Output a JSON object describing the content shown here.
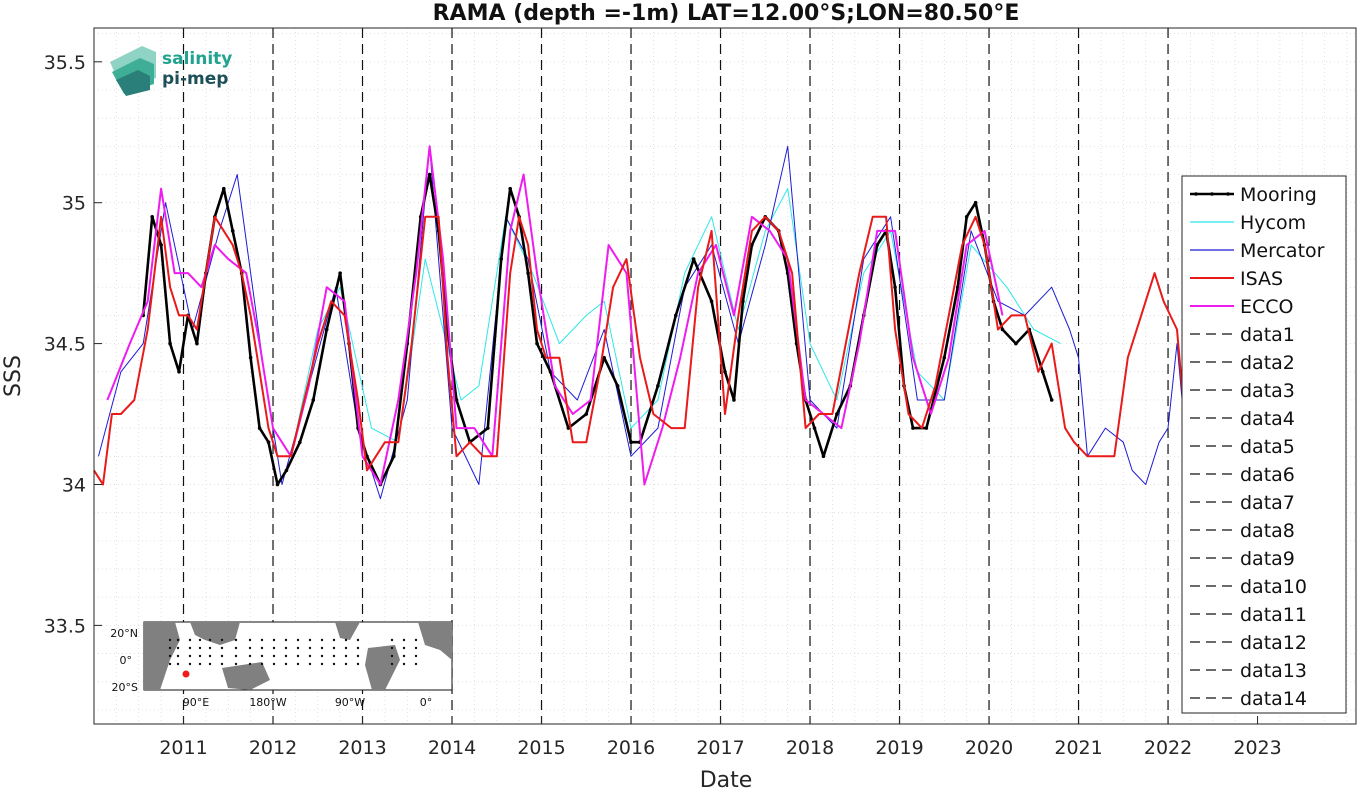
{
  "chart_data": {
    "type": "line",
    "title": "RAMA (depth =-1m) LAT=12.00°S;LON=80.50°E",
    "xlabel": "Date",
    "ylabel": "SSS",
    "xlim": [
      2010.0,
      2024.1
    ],
    "ylim": [
      33.15,
      35.62
    ],
    "x_ticks": [
      2011,
      2012,
      2013,
      2014,
      2015,
      2016,
      2017,
      2018,
      2019,
      2020,
      2021,
      2022,
      2023
    ],
    "x_tick_labels": [
      "2011",
      "2012",
      "2013",
      "2014",
      "2015",
      "2016",
      "2017",
      "2018",
      "2019",
      "2020",
      "2021",
      "2022",
      "2023"
    ],
    "y_ticks": [
      33.5,
      34,
      34.5,
      35,
      35.5
    ],
    "y_tick_labels": [
      "33.5",
      "34",
      "34.5",
      "35",
      "35.5"
    ],
    "grid": true,
    "legend_position": "right",
    "vlines_x": [
      2011,
      2012,
      2013,
      2014,
      2015,
      2016,
      2017,
      2018,
      2019,
      2020,
      2021,
      2022
    ],
    "series": [
      {
        "name": "Mooring",
        "color": "#000000",
        "style": "solid-dots",
        "x": [
          2010.55,
          2010.65,
          2010.75,
          2010.85,
          2010.95,
          2011.05,
          2011.15,
          2011.25,
          2011.35,
          2011.45,
          2011.55,
          2011.65,
          2011.75,
          2011.85,
          2011.95,
          2012.05,
          2012.15,
          2012.3,
          2012.45,
          2012.6,
          2012.75,
          2012.85,
          2012.95,
          2013.05,
          2013.2,
          2013.35,
          2013.5,
          2013.65,
          2013.75,
          2013.85,
          2013.95,
          2014.05,
          2014.2,
          2014.4,
          2014.55,
          2014.65,
          2014.75,
          2014.85,
          2014.95,
          2015.1,
          2015.3,
          2015.5,
          2015.7,
          2015.85,
          2016.0,
          2016.1,
          2016.3,
          2016.5,
          2016.7,
          2016.9,
          2017.05,
          2017.15,
          2017.25,
          2017.35,
          2017.5,
          2017.65,
          2017.75,
          2017.85,
          2017.95,
          2018.05,
          2018.15,
          2018.3,
          2018.45,
          2018.6,
          2018.75,
          2018.85,
          2018.95,
          2019.05,
          2019.15,
          2019.3,
          2019.5,
          2019.65,
          2019.75,
          2019.85,
          2019.95,
          2020.05,
          2020.15,
          2020.3,
          2020.45,
          2020.6,
          2020.7
        ],
        "values": [
          34.6,
          34.95,
          34.85,
          34.5,
          34.4,
          34.6,
          34.5,
          34.75,
          34.95,
          35.05,
          34.9,
          34.75,
          34.45,
          34.2,
          34.15,
          34.0,
          34.05,
          34.15,
          34.3,
          34.55,
          34.75,
          34.5,
          34.2,
          34.1,
          34.0,
          34.1,
          34.5,
          34.95,
          35.1,
          34.9,
          34.55,
          34.3,
          34.15,
          34.2,
          34.8,
          35.05,
          34.95,
          34.75,
          34.5,
          34.4,
          34.2,
          34.25,
          34.45,
          34.35,
          34.15,
          34.15,
          34.35,
          34.6,
          34.8,
          34.65,
          34.4,
          34.3,
          34.65,
          34.85,
          34.95,
          34.9,
          34.75,
          34.5,
          34.3,
          34.2,
          34.1,
          34.25,
          34.35,
          34.6,
          34.85,
          34.9,
          34.7,
          34.35,
          34.2,
          34.2,
          34.45,
          34.7,
          34.95,
          35.0,
          34.85,
          34.65,
          34.55,
          34.5,
          34.55,
          34.4,
          34.3
        ]
      },
      {
        "name": "Hycom",
        "color": "#2ee8e8",
        "style": "solid",
        "x": [
          2012.2,
          2012.5,
          2012.75,
          2013.1,
          2013.4,
          2013.7,
          2014.1,
          2014.3,
          2014.6,
          2014.9,
          2015.2,
          2015.5,
          2015.7,
          2016.0,
          2016.3,
          2016.6,
          2016.9,
          2017.2,
          2017.5,
          2017.75,
          2018.0,
          2018.3,
          2018.6,
          2018.9,
          2019.2,
          2019.5,
          2019.8,
          2020.2,
          2020.5,
          2020.8
        ],
        "values": [
          34.1,
          34.55,
          34.7,
          34.2,
          34.15,
          34.8,
          34.3,
          34.35,
          34.95,
          34.75,
          34.5,
          34.6,
          34.65,
          34.2,
          34.3,
          34.75,
          34.95,
          34.55,
          34.9,
          35.05,
          34.5,
          34.3,
          34.75,
          34.9,
          34.4,
          34.3,
          34.85,
          34.7,
          34.55,
          34.5
        ]
      },
      {
        "name": "Mercator",
        "color": "#1c1cd6",
        "style": "solid",
        "x": [
          2010.05,
          2010.3,
          2010.55,
          2010.8,
          2011.1,
          2011.4,
          2011.6,
          2011.9,
          2012.1,
          2012.4,
          2012.7,
          2012.95,
          2013.2,
          2013.5,
          2013.75,
          2014.0,
          2014.3,
          2014.6,
          2014.85,
          2015.1,
          2015.4,
          2015.7,
          2016.0,
          2016.3,
          2016.6,
          2016.9,
          2017.2,
          2017.5,
          2017.75,
          2018.0,
          2018.3,
          2018.6,
          2018.9,
          2019.2,
          2019.5,
          2019.8,
          2020.1,
          2020.4,
          2020.7,
          2020.9,
          2021.0,
          2021.1,
          2021.3,
          2021.5,
          2021.6,
          2021.75,
          2021.9,
          2022.0,
          2022.1,
          2022.2,
          2022.35,
          2022.5,
          2022.7,
          2022.85,
          2023.0,
          2023.15,
          2023.3,
          2023.45,
          2023.6,
          2023.75
        ],
        "values": [
          34.1,
          34.4,
          34.5,
          35.0,
          34.55,
          34.9,
          35.1,
          34.4,
          34.0,
          34.35,
          34.7,
          34.2,
          33.95,
          34.3,
          35.2,
          34.2,
          34.0,
          34.95,
          34.8,
          34.4,
          34.3,
          34.55,
          34.1,
          34.2,
          34.7,
          34.85,
          34.5,
          34.85,
          35.2,
          34.3,
          34.2,
          34.8,
          34.95,
          34.3,
          34.3,
          34.9,
          34.65,
          34.6,
          34.7,
          34.55,
          34.45,
          34.1,
          34.2,
          34.15,
          34.05,
          34.0,
          34.15,
          34.2,
          34.5,
          34.15,
          34.55,
          34.7,
          34.6,
          34.55,
          34.3,
          34.2,
          33.95,
          34.1,
          33.8,
          34.15
        ]
      },
      {
        "name": "ISAS",
        "color": "#e81a1a",
        "style": "solid",
        "x": [
          2010.0,
          2010.1,
          2010.2,
          2010.3,
          2010.45,
          2010.6,
          2010.75,
          2010.85,
          2010.95,
          2011.05,
          2011.15,
          2011.25,
          2011.35,
          2011.45,
          2011.55,
          2011.65,
          2011.75,
          2011.85,
          2011.95,
          2012.05,
          2012.2,
          2012.35,
          2012.5,
          2012.65,
          2012.8,
          2012.95,
          2013.05,
          2013.15,
          2013.25,
          2013.4,
          2013.55,
          2013.7,
          2013.85,
          2013.95,
          2014.05,
          2014.2,
          2014.35,
          2014.5,
          2014.65,
          2014.75,
          2014.85,
          2014.95,
          2015.05,
          2015.2,
          2015.35,
          2015.5,
          2015.65,
          2015.8,
          2015.95,
          2016.1,
          2016.25,
          2016.45,
          2016.6,
          2016.75,
          2016.9,
          2017.05,
          2017.2,
          2017.35,
          2017.5,
          2017.65,
          2017.8,
          2017.95,
          2018.1,
          2018.25,
          2018.4,
          2018.55,
          2018.7,
          2018.85,
          2018.95,
          2019.1,
          2019.25,
          2019.4,
          2019.55,
          2019.7,
          2019.85,
          2019.95,
          2020.1,
          2020.25,
          2020.4,
          2020.55,
          2020.7,
          2020.85,
          2020.95,
          2021.1,
          2021.25,
          2021.4,
          2021.55,
          2021.7,
          2021.85,
          2021.95,
          2022.1,
          2022.25,
          2022.4,
          2022.55,
          2022.7,
          2022.85,
          2023.0,
          2023.15,
          2023.3
        ],
        "values": [
          34.05,
          34.0,
          34.25,
          34.25,
          34.3,
          34.55,
          34.95,
          34.7,
          34.6,
          34.6,
          34.55,
          34.75,
          34.95,
          34.9,
          34.85,
          34.75,
          34.6,
          34.4,
          34.2,
          34.1,
          34.1,
          34.3,
          34.5,
          34.65,
          34.6,
          34.3,
          34.05,
          34.1,
          34.15,
          34.15,
          34.5,
          34.95,
          34.95,
          34.45,
          34.1,
          34.15,
          34.1,
          34.1,
          34.75,
          34.95,
          34.85,
          34.55,
          34.45,
          34.45,
          34.15,
          34.15,
          34.4,
          34.7,
          34.8,
          34.45,
          34.25,
          34.2,
          34.2,
          34.7,
          34.9,
          34.25,
          34.6,
          34.9,
          34.95,
          34.9,
          34.75,
          34.2,
          34.25,
          34.25,
          34.5,
          34.75,
          34.95,
          34.95,
          34.55,
          34.25,
          34.2,
          34.35,
          34.6,
          34.85,
          34.95,
          34.85,
          34.55,
          34.6,
          34.6,
          34.4,
          34.5,
          34.2,
          34.15,
          34.1,
          34.1,
          34.1,
          34.45,
          34.6,
          34.75,
          34.65,
          34.55,
          34.0,
          34.05,
          33.95,
          34.15,
          34.0,
          34.15,
          34.15,
          34.15
        ]
      },
      {
        "name": "ECCO",
        "color": "#ee1cee",
        "style": "solid",
        "x": [
          2010.15,
          2010.4,
          2010.6,
          2010.75,
          2010.9,
          2011.05,
          2011.2,
          2011.35,
          2011.5,
          2011.7,
          2011.85,
          2012.0,
          2012.2,
          2012.4,
          2012.6,
          2012.8,
          2013.0,
          2013.2,
          2013.4,
          2013.6,
          2013.75,
          2013.9,
          2014.05,
          2014.25,
          2014.45,
          2014.65,
          2014.8,
          2014.95,
          2015.15,
          2015.35,
          2015.55,
          2015.75,
          2015.95,
          2016.15,
          2016.35,
          2016.55,
          2016.75,
          2016.95,
          2017.15,
          2017.35,
          2017.55,
          2017.75,
          2017.95,
          2018.15,
          2018.35,
          2018.55,
          2018.75,
          2018.95,
          2019.15,
          2019.35,
          2019.55,
          2019.75,
          2019.95,
          2020.15
        ],
        "values": [
          34.3,
          34.5,
          34.65,
          35.05,
          34.75,
          34.75,
          34.7,
          34.85,
          34.8,
          34.75,
          34.5,
          34.2,
          34.1,
          34.35,
          34.7,
          34.65,
          34.1,
          34.0,
          34.3,
          34.75,
          35.2,
          34.8,
          34.2,
          34.2,
          34.1,
          34.9,
          35.1,
          34.75,
          34.35,
          34.25,
          34.3,
          34.85,
          34.75,
          34.0,
          34.2,
          34.45,
          34.75,
          34.85,
          34.6,
          34.95,
          34.9,
          34.8,
          34.3,
          34.25,
          34.2,
          34.5,
          34.9,
          34.9,
          34.45,
          34.25,
          34.45,
          34.85,
          34.9,
          34.6
        ]
      }
    ],
    "legend": [
      "Mooring",
      "Hycom",
      "Mercator",
      "ISAS",
      "ECCO",
      "data1",
      "data2",
      "data3",
      "data4",
      "data5",
      "data6",
      "data7",
      "data8",
      "data9",
      "data10",
      "data11",
      "data12",
      "data13",
      "data14"
    ],
    "inset_map": {
      "lat_labels": [
        "20°N",
        "0°",
        "20°S"
      ],
      "lon_labels": [
        "90°E",
        "180°W",
        "90°W",
        "0°"
      ],
      "marker_color": "#ee1c1c"
    },
    "logo": {
      "line1": "salinity",
      "line2": "pi-mep"
    }
  }
}
